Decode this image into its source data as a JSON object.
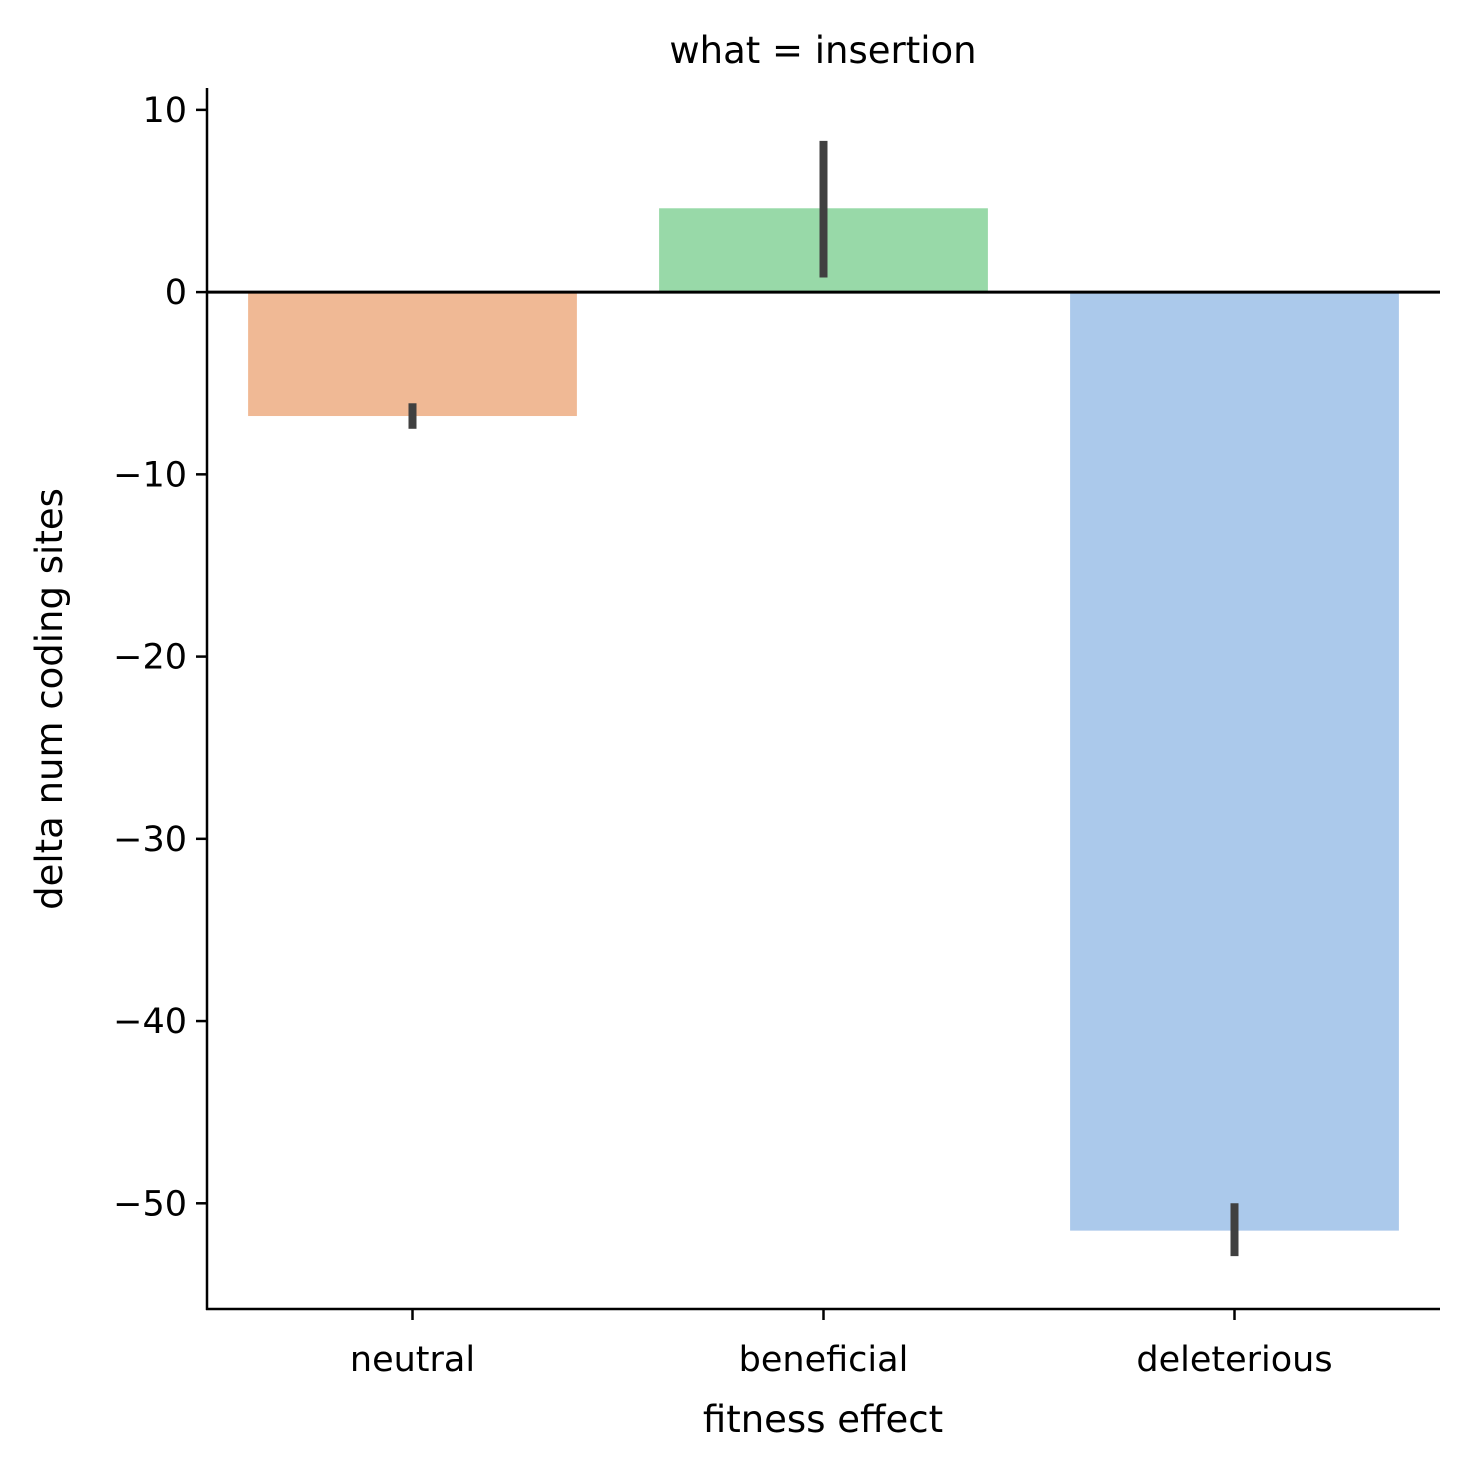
{
  "chart_data": {
    "type": "bar",
    "title": "what = insertion",
    "xlabel": "fitness effect",
    "ylabel": "delta num coding sites",
    "categories": [
      "neutral",
      "beneficial",
      "deleterious"
    ],
    "values": [
      -6.8,
      4.6,
      -51.5
    ],
    "error_bars": [
      {
        "low": -7.5,
        "high": -6.1
      },
      {
        "low": 0.8,
        "high": 8.3
      },
      {
        "low": -52.9,
        "high": -50.0
      }
    ],
    "bar_colors": [
      "#f0b995",
      "#98d9a8",
      "#abc9eb"
    ],
    "errorbar_color": "#404040",
    "ylim": [
      -55.8,
      11.2
    ],
    "yticks": [
      10,
      0,
      -10,
      -20,
      -30,
      -40,
      -50
    ],
    "ytick_labels": [
      "10",
      "0",
      "−10",
      "−20",
      "−30",
      "−40",
      "−50"
    ],
    "zero_line": true,
    "grid": false,
    "legend": "none"
  }
}
